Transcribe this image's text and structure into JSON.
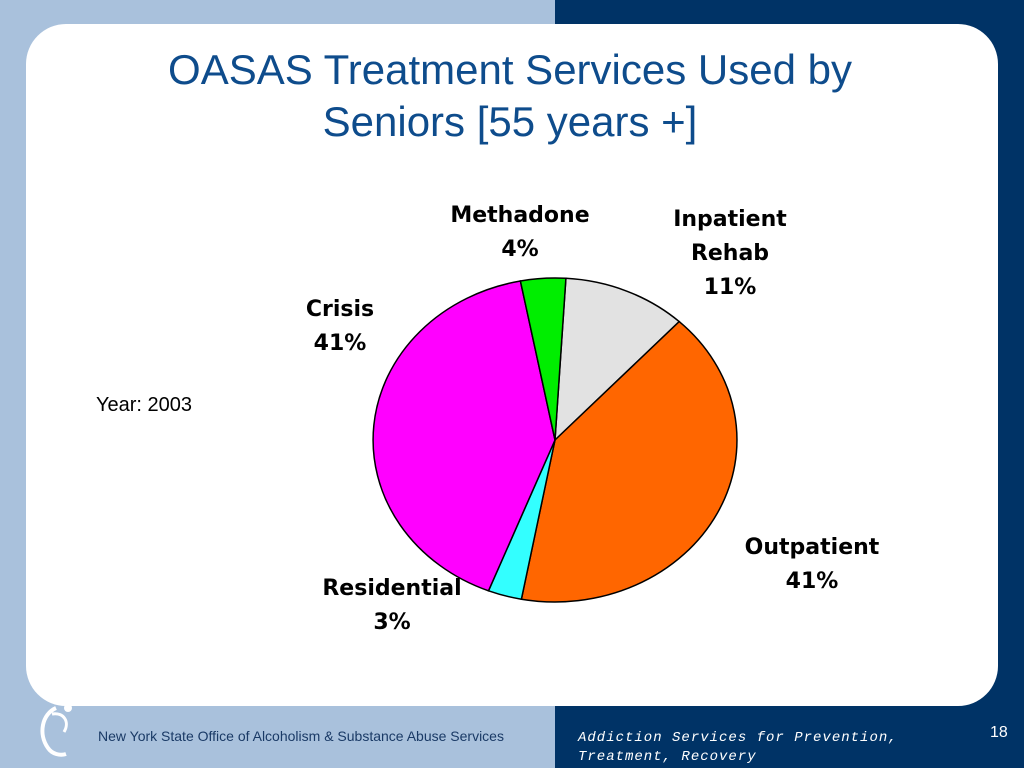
{
  "slide": {
    "title_line1": "OASAS Treatment Services Used by",
    "title_line2": "Seniors [55 years +]",
    "year_label": "Year: 2003",
    "footer_org": "New York State Office of Alcoholism & Substance Abuse Services",
    "tagline_line1": "Addiction Services for Prevention,",
    "tagline_line2": "Treatment, Recovery",
    "page_number": "18",
    "logo_icon": "figure-swoosh-icon"
  },
  "colors": {
    "title": "#0e4c8c",
    "footer_bg": "#003366"
  },
  "chart_data": {
    "type": "pie",
    "title": "",
    "slices": [
      {
        "label": "Inpatient Rehab",
        "label_lines": [
          "Inpatient",
          "Rehab"
        ],
        "value": 11,
        "value_label": "11%",
        "color": "#e2e2e2"
      },
      {
        "label": "Outpatient",
        "label_lines": [
          "Outpatient"
        ],
        "value": 41,
        "value_label": "41%",
        "color": "#ff6600"
      },
      {
        "label": "Residential",
        "label_lines": [
          "Residential"
        ],
        "value": 3,
        "value_label": "3%",
        "color": "#33ffff"
      },
      {
        "label": "Crisis",
        "label_lines": [
          "Crisis"
        ],
        "value": 41,
        "value_label": "41%",
        "color": "#ff00ff"
      },
      {
        "label": "Methadone",
        "label_lines": [
          "Methadone"
        ],
        "value": 4,
        "value_label": "4%",
        "color": "#00ee00"
      }
    ]
  }
}
